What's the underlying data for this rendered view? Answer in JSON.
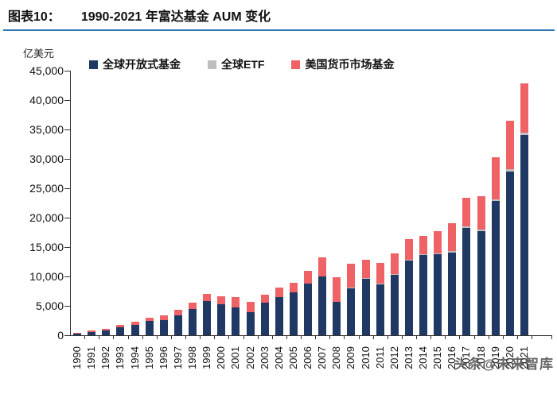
{
  "header": {
    "label": "图表10：",
    "title": "1990-2021 年富达基金 AUM 变化"
  },
  "chart_data": {
    "type": "bar",
    "stacked": true,
    "title": "1990-2021 年富达基金 AUM 变化",
    "unit_label": "亿美元",
    "xlabel": "",
    "ylabel": "亿美元",
    "ylim": [
      0,
      45000
    ],
    "ytick_step": 5000,
    "ytick_labels": [
      "0",
      "5,000",
      "10,000",
      "15,000",
      "20,000",
      "25,000",
      "30,000",
      "35,000",
      "40,000",
      "45,000"
    ],
    "grid": false,
    "legend_position": "top",
    "categories": [
      "1990",
      "1991",
      "1992",
      "1993",
      "1994",
      "1995",
      "1996",
      "1997",
      "1998",
      "1999",
      "2000",
      "2001",
      "2002",
      "2003",
      "2004",
      "2005",
      "2006",
      "2007",
      "2008",
      "2009",
      "2010",
      "2011",
      "2012",
      "2013",
      "2014",
      "2015",
      "2016",
      "2017",
      "2018",
      "2019",
      "2020",
      "2021"
    ],
    "series": [
      {
        "name": "全球开放式基金",
        "color": "#1F3864",
        "values": [
          300,
          600,
          850,
          1390,
          1800,
          2430,
          2530,
          3380,
          4500,
          5850,
          5310,
          4730,
          3920,
          5500,
          6480,
          7250,
          8800,
          9960,
          5700,
          8000,
          9700,
          8700,
          10300,
          12700,
          13700,
          13800,
          14100,
          18300,
          17700,
          22800,
          27900,
          34000
        ]
      },
      {
        "name": "全球ETF",
        "color": "#BFBFBF",
        "values": [
          0,
          0,
          0,
          0,
          0,
          0,
          0,
          0,
          0,
          0,
          0,
          0,
          0,
          0,
          0,
          0,
          0,
          0,
          0,
          50,
          50,
          50,
          100,
          100,
          150,
          150,
          200,
          250,
          250,
          300,
          350,
          400
        ]
      },
      {
        "name": "美国货币市场基金",
        "color": "#EF6266",
        "values": [
          100,
          170,
          230,
          330,
          500,
          580,
          890,
          940,
          1000,
          1130,
          1350,
          1710,
          1710,
          1350,
          1580,
          1620,
          2200,
          3280,
          4200,
          4050,
          3150,
          3550,
          3500,
          3500,
          3050,
          3750,
          4700,
          4850,
          5750,
          7200,
          8250,
          8400
        ]
      }
    ]
  },
  "watermark": {
    "text": "头条@未来智库"
  },
  "colors": {
    "accent_rule": "#2E75B6",
    "axis": "#333333"
  }
}
